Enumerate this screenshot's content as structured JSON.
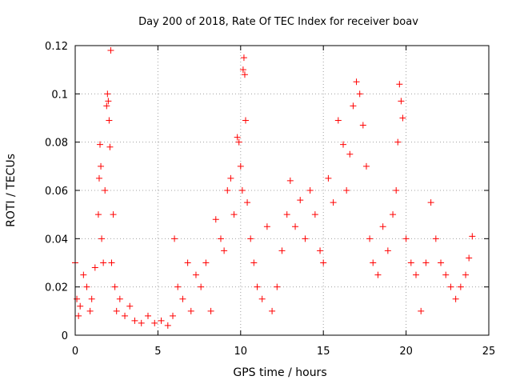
{
  "chart_data": {
    "type": "scatter",
    "title": "Day 200 of 2018, Rate Of TEC Index for receiver boav",
    "xlabel": "GPS time / hours",
    "ylabel": "ROTI / TECUs",
    "xlim": [
      0,
      25
    ],
    "ylim": [
      0,
      0.12
    ],
    "x_ticks": [
      0,
      5,
      10,
      15,
      20,
      25
    ],
    "y_ticks": [
      0,
      0.02,
      0.04,
      0.06,
      0.08,
      0.1,
      0.12
    ],
    "x_tick_labels": [
      "0",
      "5",
      "10",
      "15",
      "20",
      "25"
    ],
    "y_tick_labels": [
      "0",
      "0.02",
      "0.04",
      "0.06",
      "0.08",
      "0.1",
      "0.12"
    ],
    "grid": true,
    "marker": "+",
    "series_color": "#ff0000",
    "series": [
      {
        "name": "ROTI",
        "x": [
          0.0,
          0.1,
          0.2,
          0.3,
          0.5,
          0.7,
          0.9,
          1.0,
          1.2,
          1.4,
          1.45,
          1.5,
          1.55,
          1.6,
          1.7,
          1.8,
          1.9,
          1.95,
          2.0,
          2.05,
          2.1,
          2.15,
          2.2,
          2.3,
          2.4,
          2.5,
          2.7,
          3.0,
          3.3,
          3.6,
          4.0,
          4.4,
          4.8,
          5.2,
          5.6,
          5.9,
          6.0,
          6.2,
          6.5,
          6.8,
          7.0,
          7.3,
          7.6,
          7.9,
          8.2,
          8.5,
          8.8,
          9.0,
          9.2,
          9.4,
          9.6,
          9.8,
          9.9,
          10.0,
          10.1,
          10.15,
          10.2,
          10.25,
          10.3,
          10.4,
          10.6,
          10.8,
          11.0,
          11.3,
          11.6,
          11.9,
          12.2,
          12.5,
          12.8,
          13.0,
          13.3,
          13.6,
          13.9,
          14.2,
          14.5,
          14.8,
          15.0,
          15.3,
          15.6,
          15.9,
          16.2,
          16.4,
          16.6,
          16.8,
          17.0,
          17.2,
          17.4,
          17.6,
          17.8,
          18.0,
          18.3,
          18.6,
          18.9,
          19.2,
          19.4,
          19.5,
          19.6,
          19.7,
          19.8,
          20.0,
          20.3,
          20.6,
          20.9,
          21.2,
          21.5,
          21.8,
          22.1,
          22.4,
          22.7,
          23.0,
          23.3,
          23.6,
          23.8,
          24.0
        ],
        "y": [
          0.03,
          0.015,
          0.008,
          0.012,
          0.025,
          0.02,
          0.01,
          0.015,
          0.028,
          0.05,
          0.065,
          0.079,
          0.07,
          0.04,
          0.03,
          0.06,
          0.095,
          0.1,
          0.097,
          0.089,
          0.078,
          0.118,
          0.03,
          0.05,
          0.02,
          0.01,
          0.015,
          0.008,
          0.012,
          0.006,
          0.005,
          0.008,
          0.005,
          0.006,
          0.004,
          0.008,
          0.04,
          0.02,
          0.015,
          0.03,
          0.01,
          0.025,
          0.02,
          0.03,
          0.01,
          0.048,
          0.04,
          0.035,
          0.06,
          0.065,
          0.05,
          0.082,
          0.08,
          0.07,
          0.06,
          0.11,
          0.115,
          0.108,
          0.089,
          0.055,
          0.04,
          0.03,
          0.02,
          0.015,
          0.045,
          0.01,
          0.02,
          0.035,
          0.05,
          0.064,
          0.045,
          0.056,
          0.04,
          0.06,
          0.05,
          0.035,
          0.03,
          0.065,
          0.055,
          0.089,
          0.079,
          0.06,
          0.075,
          0.095,
          0.105,
          0.1,
          0.087,
          0.07,
          0.04,
          0.03,
          0.025,
          0.045,
          0.035,
          0.05,
          0.06,
          0.08,
          0.104,
          0.097,
          0.09,
          0.04,
          0.03,
          0.025,
          0.01,
          0.03,
          0.055,
          0.04,
          0.03,
          0.025,
          0.02,
          0.015,
          0.02,
          0.025,
          0.032,
          0.041
        ]
      }
    ]
  }
}
